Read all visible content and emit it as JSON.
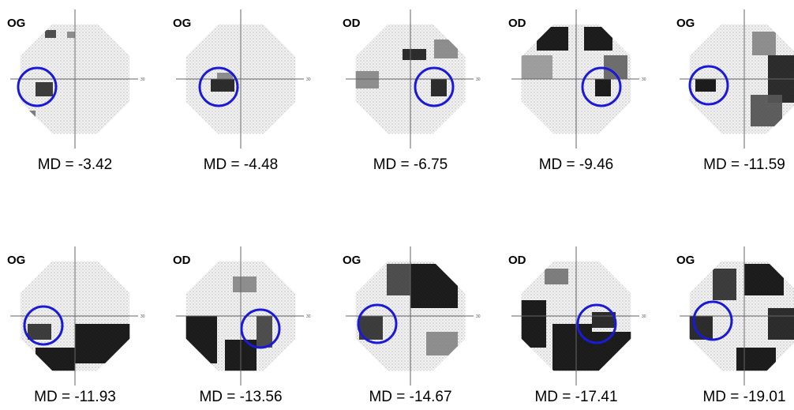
{
  "axis_end_label": "30",
  "panels": [
    {
      "eye": "OG",
      "md": "MD = -3.42"
    },
    {
      "eye": "OG",
      "md": "MD = -4.48"
    },
    {
      "eye": "OD",
      "md": "MD = -6.75"
    },
    {
      "eye": "OD",
      "md": "MD = -9.46"
    },
    {
      "eye": "OG",
      "md": "MD = -11.59"
    },
    {
      "eye": "OG",
      "md": "MD = -11.93"
    },
    {
      "eye": "OD",
      "md": "MD = -13.56"
    },
    {
      "eye": "OG",
      "md": "MD = -14.67"
    },
    {
      "eye": "OD",
      "md": "MD = -17.41"
    },
    {
      "eye": "OG",
      "md": "MD = -19.01"
    }
  ]
}
